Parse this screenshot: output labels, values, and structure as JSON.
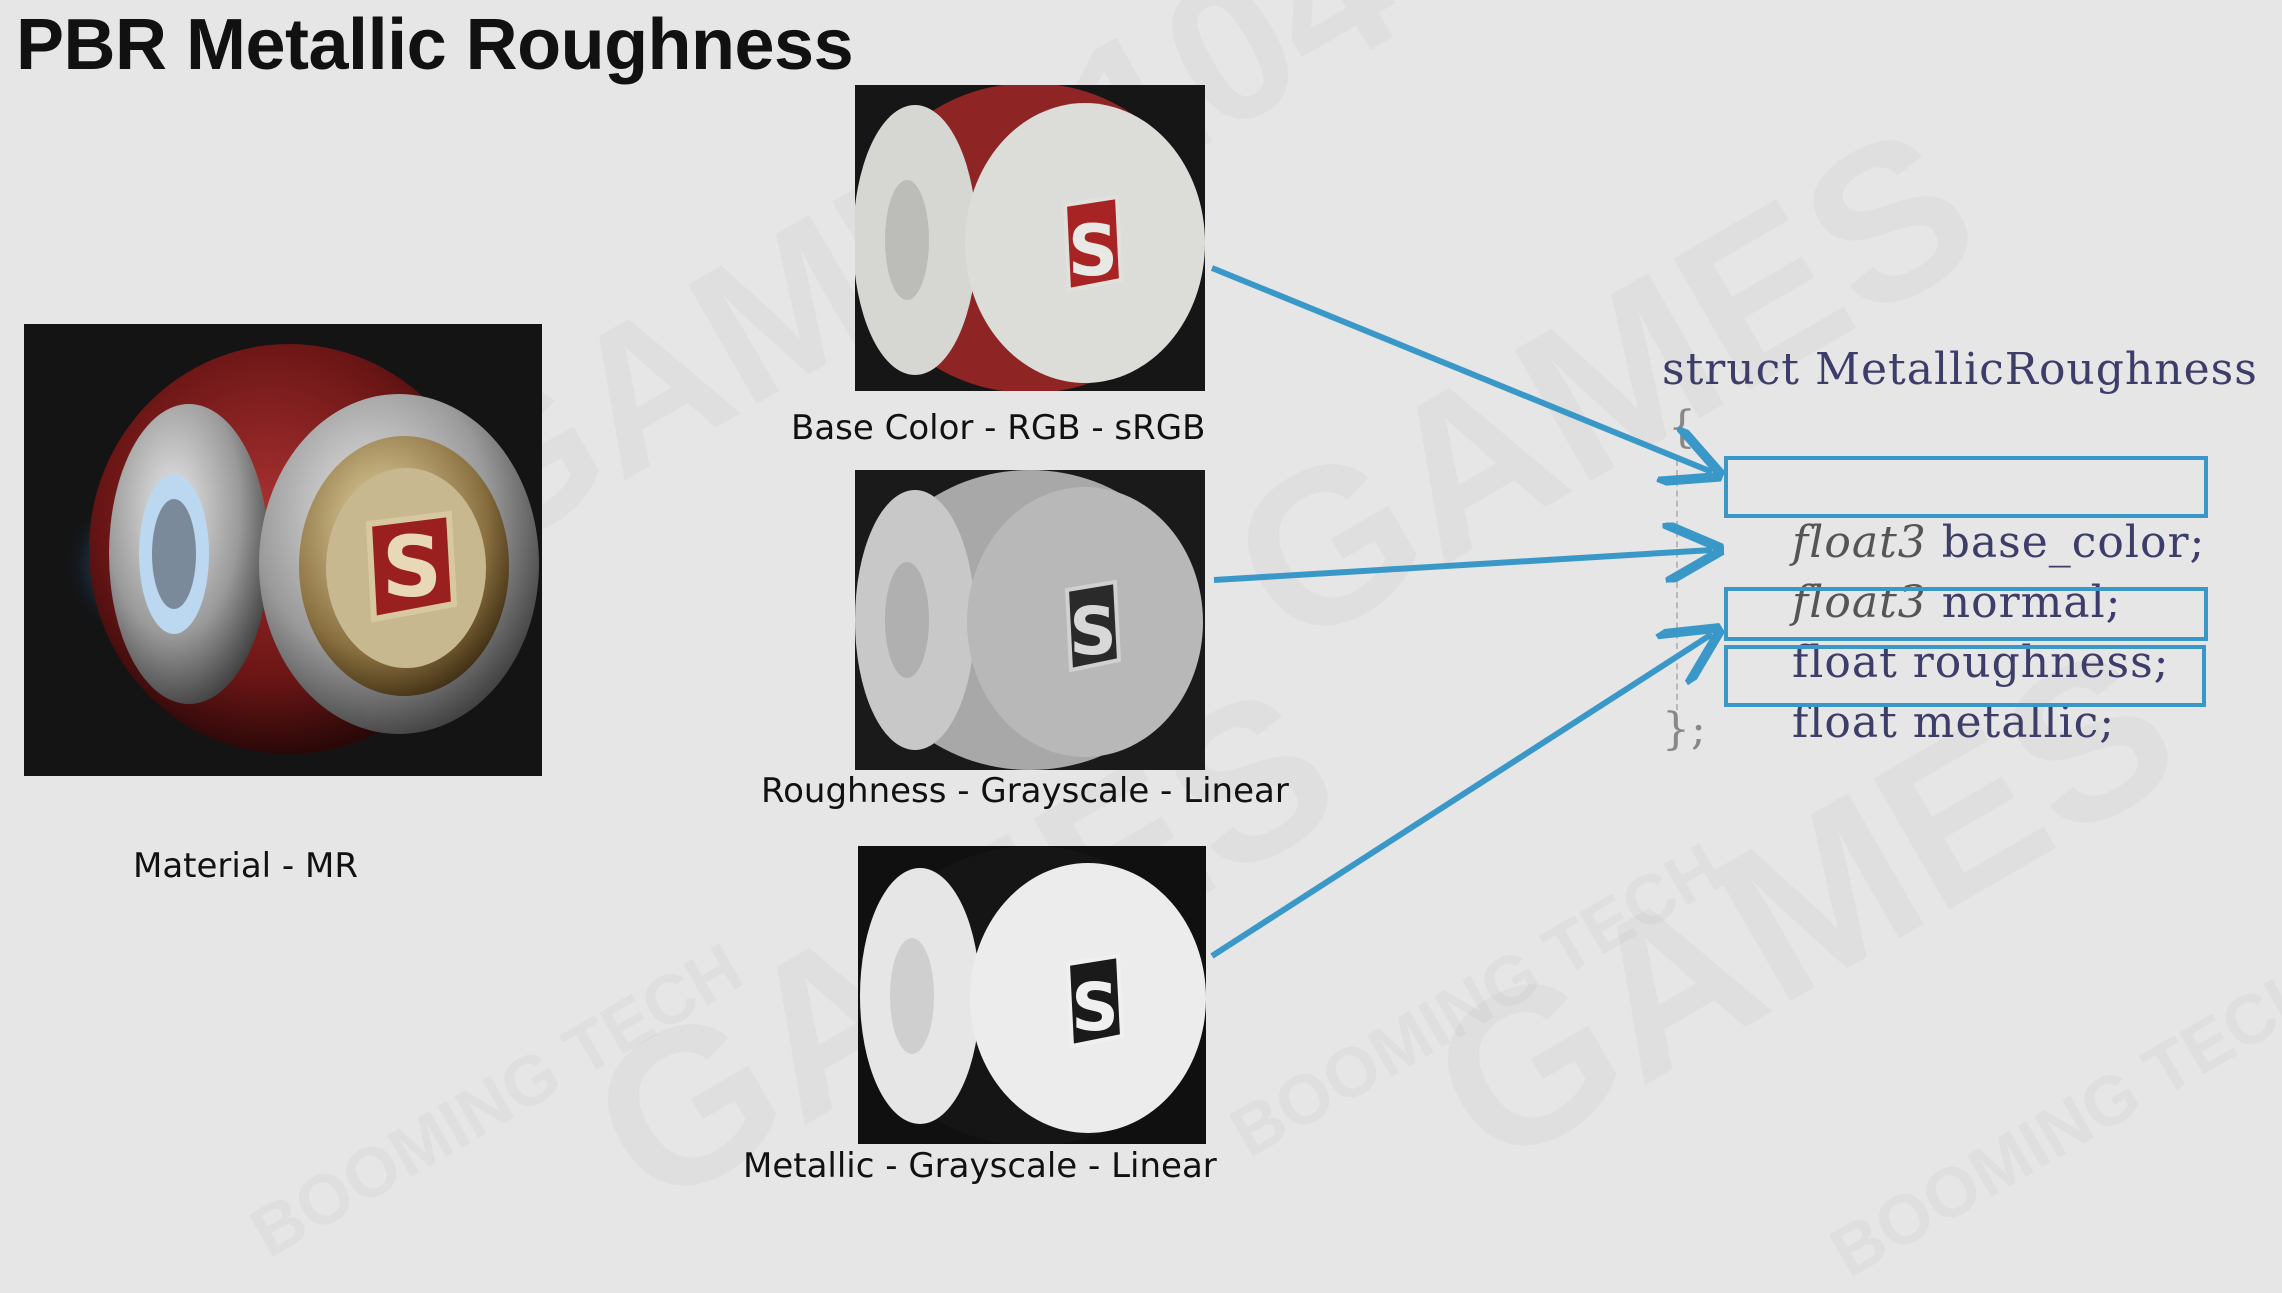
{
  "slide": {
    "title": "PBR Metallic Roughness"
  },
  "material": {
    "caption": "Material - MR",
    "logo_letter": "S"
  },
  "maps": [
    {
      "caption": "Base Color - RGB - sRGB",
      "logo_letter": "S"
    },
    {
      "caption": "Roughness - Grayscale - Linear",
      "logo_letter": "S"
    },
    {
      "caption": "Metallic - Grayscale - Linear",
      "logo_letter": "S"
    }
  ],
  "code": {
    "struct_line": "struct MetallicRoughness",
    "open_brace": "{",
    "fields": [
      {
        "type": "float3",
        "name": "base_color;",
        "italic_type": true,
        "highlighted": true
      },
      {
        "type": "float3",
        "name": "normal;",
        "italic_type": true,
        "highlighted": false
      },
      {
        "type": "float",
        "name": "roughness;",
        "italic_type": false,
        "highlighted": true
      },
      {
        "type": "float",
        "name": "metallic;",
        "italic_type": false,
        "highlighted": true
      }
    ],
    "close_brace": "};"
  },
  "watermarks": [
    "GAMES104",
    "GAMES",
    "BOOMING TECH"
  ],
  "colors": {
    "background": "#e6e6e6",
    "accent": "#3a98c8",
    "ball_red": "#8b1e1e"
  }
}
